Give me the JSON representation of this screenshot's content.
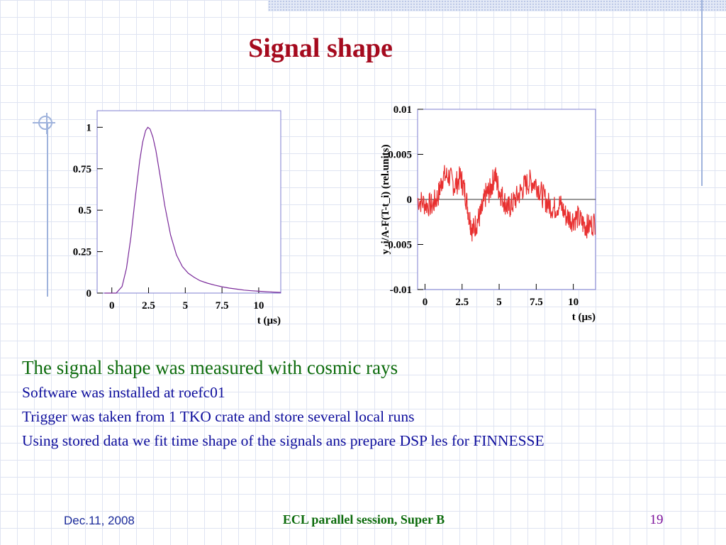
{
  "slide": {
    "title": "Signal shape",
    "footer": {
      "date": "Dec.11, 2008",
      "center": "ECL parallel session, Super B",
      "page": "19"
    }
  },
  "body": {
    "lead": "The signal shape was measured with cosmic rays",
    "lines": [
      "Software was installed at roefc01",
      "Trigger was taken from 1 TKO crate and store several local runs",
      "Using stored data we fit time shape of the signals ans prepare DSP les for FINNESSE"
    ]
  },
  "colors": {
    "title": "#a50a1e",
    "lead": "#0c6b0c",
    "text": "#0d0d9c",
    "left_curve": "#7a2a9a",
    "right_curve": "#e83030"
  },
  "chart_data": [
    {
      "type": "line",
      "title": "",
      "xlabel": "t (µs)",
      "ylabel": "",
      "xlim": [
        -1,
        11.5
      ],
      "ylim": [
        0,
        1.1
      ],
      "xticks": [
        0,
        2.5,
        5,
        7.5,
        10
      ],
      "xtick_labels": [
        "0",
        "2.5",
        "5",
        "7.5",
        "10"
      ],
      "yticks": [
        0,
        0.25,
        0.5,
        0.75,
        1
      ],
      "ytick_labels": [
        "0",
        "0.25",
        "0.5",
        "0.75",
        "1"
      ],
      "grid": false,
      "series": [
        {
          "x": [
            -0.5,
            0.3,
            0.7,
            1.0,
            1.3,
            1.6,
            1.9,
            2.1,
            2.3,
            2.45,
            2.6,
            2.8,
            3.0,
            3.3,
            3.6,
            4.0,
            4.4,
            4.8,
            5.2,
            5.6,
            6.0,
            6.5,
            7.0,
            7.5,
            8.0,
            8.5,
            9.0,
            9.5,
            10.0,
            10.5,
            11.0,
            11.5
          ],
          "y": [
            0,
            0,
            0.04,
            0.15,
            0.34,
            0.58,
            0.8,
            0.91,
            0.98,
            1.0,
            0.99,
            0.94,
            0.86,
            0.7,
            0.53,
            0.35,
            0.23,
            0.16,
            0.12,
            0.095,
            0.075,
            0.06,
            0.048,
            0.038,
            0.03,
            0.024,
            0.018,
            0.014,
            0.011,
            0.008,
            0.006,
            0.004
          ]
        }
      ]
    },
    {
      "type": "line",
      "title": "",
      "xlabel": "t (µs)",
      "ylabel": "y_i/A-F(T-t_i) (rel.units)",
      "xlim": [
        -0.5,
        11.5
      ],
      "ylim": [
        -0.01,
        0.01
      ],
      "xticks": [
        0,
        2.5,
        5,
        7.5,
        10
      ],
      "xtick_labels": [
        "0",
        "2.5",
        "5",
        "7.5",
        "10"
      ],
      "yticks": [
        -0.01,
        -0.005,
        0,
        0.005,
        0.01
      ],
      "ytick_labels": [
        "-0.01",
        "-0.005",
        "0",
        "0.005",
        "0.01"
      ],
      "zero_line": true,
      "grid": false,
      "series": [
        {
          "style": "noisy",
          "x": [
            -0.5,
            0,
            0.5,
            0.9,
            1.2,
            1.6,
            2.0,
            2.4,
            2.7,
            3.0,
            3.2,
            3.5,
            3.8,
            4.1,
            4.4,
            4.7,
            5.0,
            5.3,
            5.6,
            5.9,
            6.3,
            6.7,
            7.1,
            7.5,
            7.9,
            8.3,
            8.7,
            9.1,
            9.5,
            9.9,
            10.3,
            10.7,
            11.0,
            11.5
          ],
          "y": [
            0.0,
            -0.0005,
            -0.0007,
            0.0005,
            0.0025,
            0.0026,
            0.0015,
            0.0025,
            0.0008,
            -0.002,
            -0.0035,
            -0.0025,
            -0.0015,
            0.0005,
            0.001,
            0.0028,
            0.001,
            0.0,
            -0.001,
            -0.0005,
            0.0005,
            0.0015,
            0.002,
            0.0018,
            0.0005,
            -0.0005,
            -0.001,
            -0.0005,
            -0.0018,
            -0.0022,
            -0.002,
            -0.0028,
            -0.003,
            -0.0025
          ]
        }
      ]
    }
  ]
}
